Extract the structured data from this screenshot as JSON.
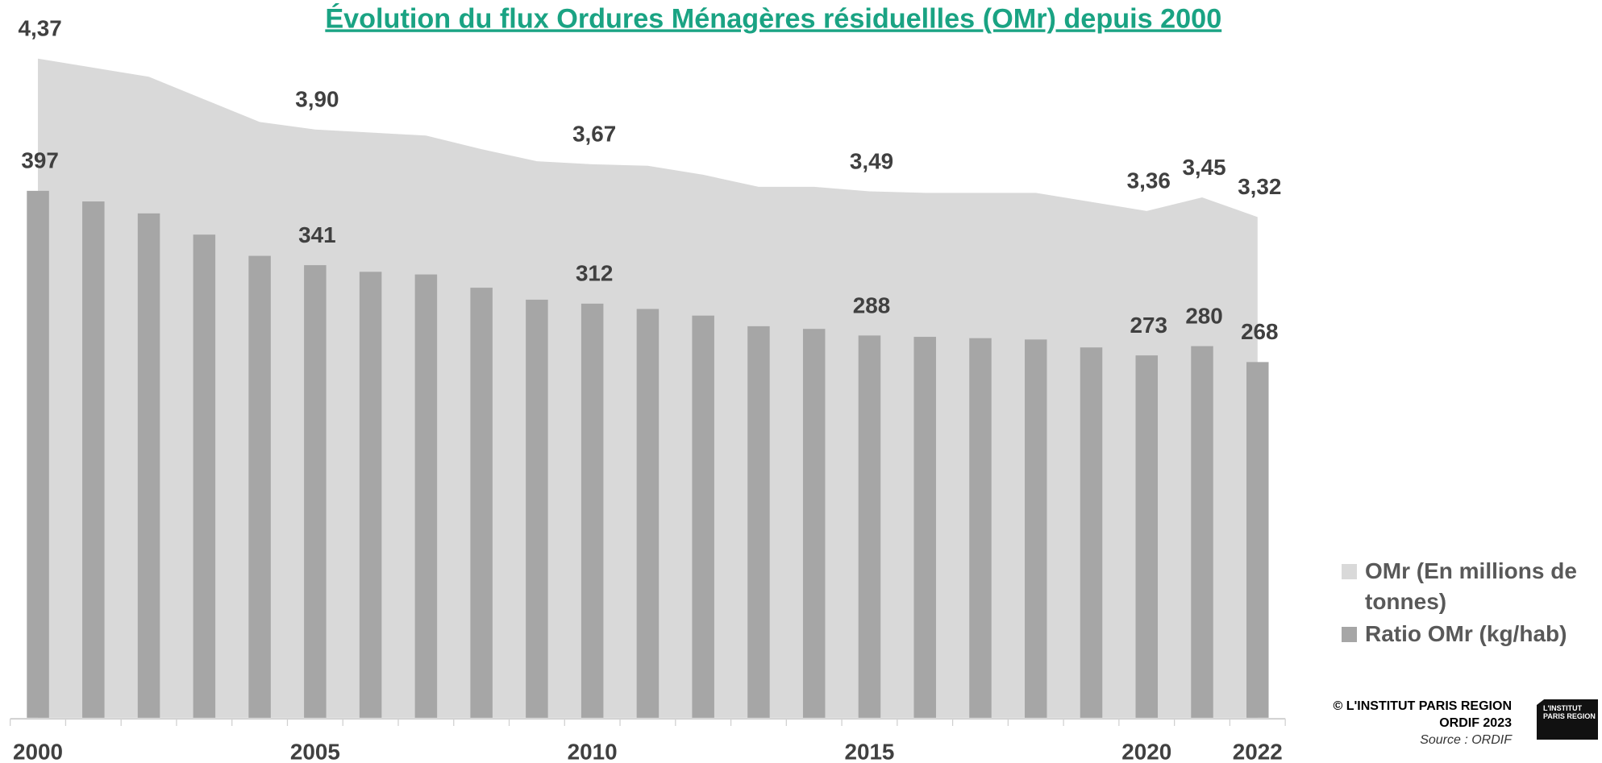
{
  "chart_data": {
    "type": "bar-area",
    "title": "Évolution du flux Ordures Ménagères résiduellles (OMr) depuis 2000",
    "categories": [
      "2000",
      null,
      null,
      null,
      null,
      "2005",
      null,
      null,
      null,
      null,
      "2010",
      null,
      null,
      null,
      null,
      "2015",
      null,
      null,
      null,
      null,
      "2020",
      null,
      "2022"
    ],
    "ylim": [
      0,
      500
    ],
    "y2lim": [
      0,
      4.4
    ],
    "series": [
      {
        "name": "OMr (En millions de tonnes)",
        "type": "area",
        "axis": "y2",
        "color": "#d9d9d9",
        "values": [
          4.37,
          4.31,
          4.25,
          4.1,
          3.95,
          3.9,
          3.88,
          3.86,
          3.77,
          3.69,
          3.67,
          3.66,
          3.6,
          3.52,
          3.52,
          3.49,
          3.48,
          3.48,
          3.48,
          3.42,
          3.36,
          3.45,
          3.32
        ],
        "value_labels": [
          "4,37",
          null,
          null,
          null,
          null,
          "3,90",
          null,
          null,
          null,
          null,
          "3,67",
          null,
          null,
          null,
          null,
          "3,49",
          null,
          null,
          null,
          null,
          "3,36",
          "3,45",
          "3,32"
        ]
      },
      {
        "name": "Ratio OMr (kg/hab)",
        "type": "bar",
        "color": "#a6a6a6",
        "values": [
          397,
          389,
          380,
          364,
          348,
          341,
          336,
          334,
          324,
          315,
          312,
          308,
          303,
          295,
          293,
          288,
          287,
          286,
          285,
          279,
          273,
          280,
          268
        ],
        "value_labels": [
          "397",
          null,
          null,
          null,
          null,
          "341",
          null,
          null,
          null,
          null,
          "312",
          null,
          null,
          null,
          null,
          "288",
          null,
          null,
          null,
          null,
          "273",
          "280",
          "268"
        ]
      }
    ],
    "legend": "right"
  },
  "footer": {
    "copyright": "© L'INSTITUT PARIS REGION",
    "edition": "ORDIF 2023",
    "source": "Source : ORDIF",
    "logo": "L'INSTITUT PARIS REGION"
  }
}
